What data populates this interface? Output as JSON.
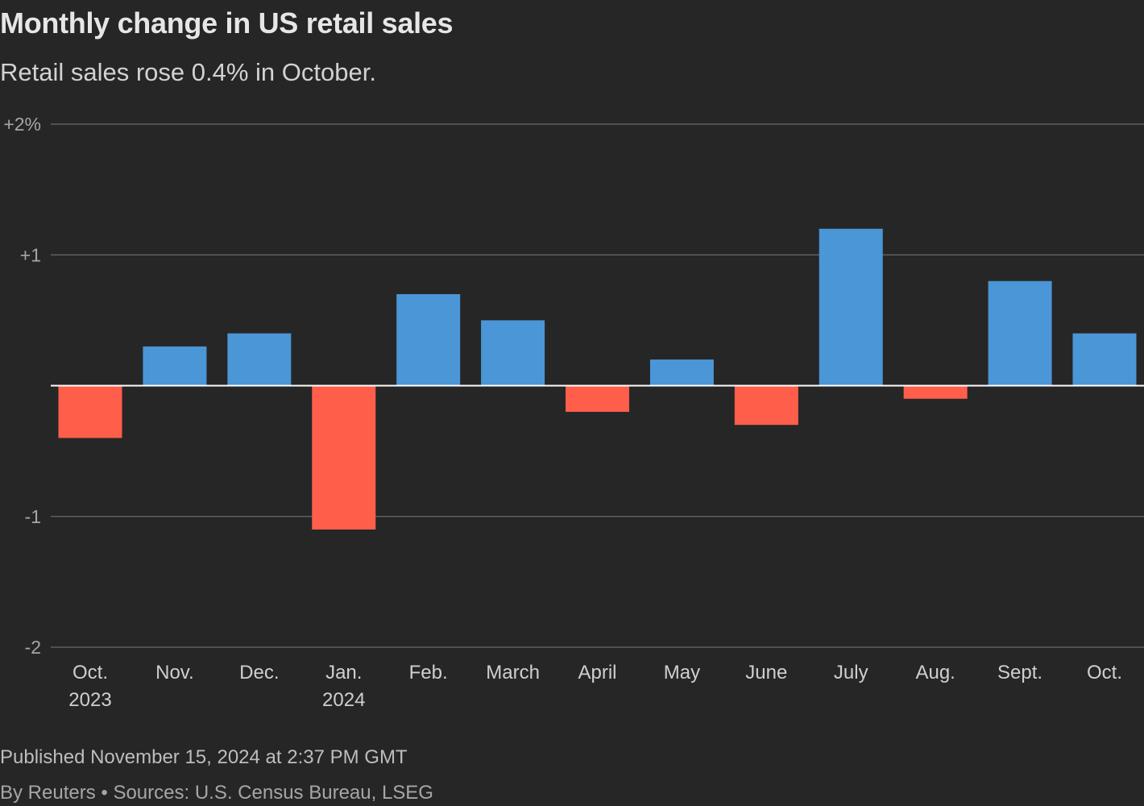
{
  "header": {
    "title": "Monthly change in US retail sales",
    "subtitle": "Retail sales rose 0.4% in October."
  },
  "chart_data": {
    "type": "bar",
    "title": "Monthly change in US retail sales",
    "subtitle": "Retail sales rose 0.4% in October.",
    "xlabel": "",
    "ylabel": "",
    "categories": [
      [
        "Oct.",
        "2023"
      ],
      [
        "Nov."
      ],
      [
        "Dec."
      ],
      [
        "Jan.",
        "2024"
      ],
      [
        "Feb."
      ],
      [
        "March"
      ],
      [
        "April"
      ],
      [
        "May"
      ],
      [
        "June"
      ],
      [
        "July"
      ],
      [
        "Aug."
      ],
      [
        "Sept."
      ],
      [
        "Oct."
      ]
    ],
    "values": [
      -0.4,
      0.3,
      0.4,
      -1.1,
      0.7,
      0.5,
      -0.2,
      0.2,
      -0.3,
      1.2,
      -0.1,
      0.8,
      0.4
    ],
    "ylim": [
      -2,
      2
    ],
    "yticks": [
      {
        "value": 2,
        "label": "+2%"
      },
      {
        "value": 1,
        "label": "+1"
      },
      {
        "value": -1,
        "label": "-1"
      },
      {
        "value": -2,
        "label": "-2"
      }
    ],
    "grid": true,
    "colors": {
      "positive": "#4a96d6",
      "negative": "#ff5e4a",
      "grid": "#5e5e5e",
      "zero_line": "#ffffff"
    }
  },
  "footer": {
    "published": "Published November 15, 2024 at 2:37 PM GMT",
    "source": "By Reuters • Sources: U.S. Census Bureau, LSEG"
  }
}
